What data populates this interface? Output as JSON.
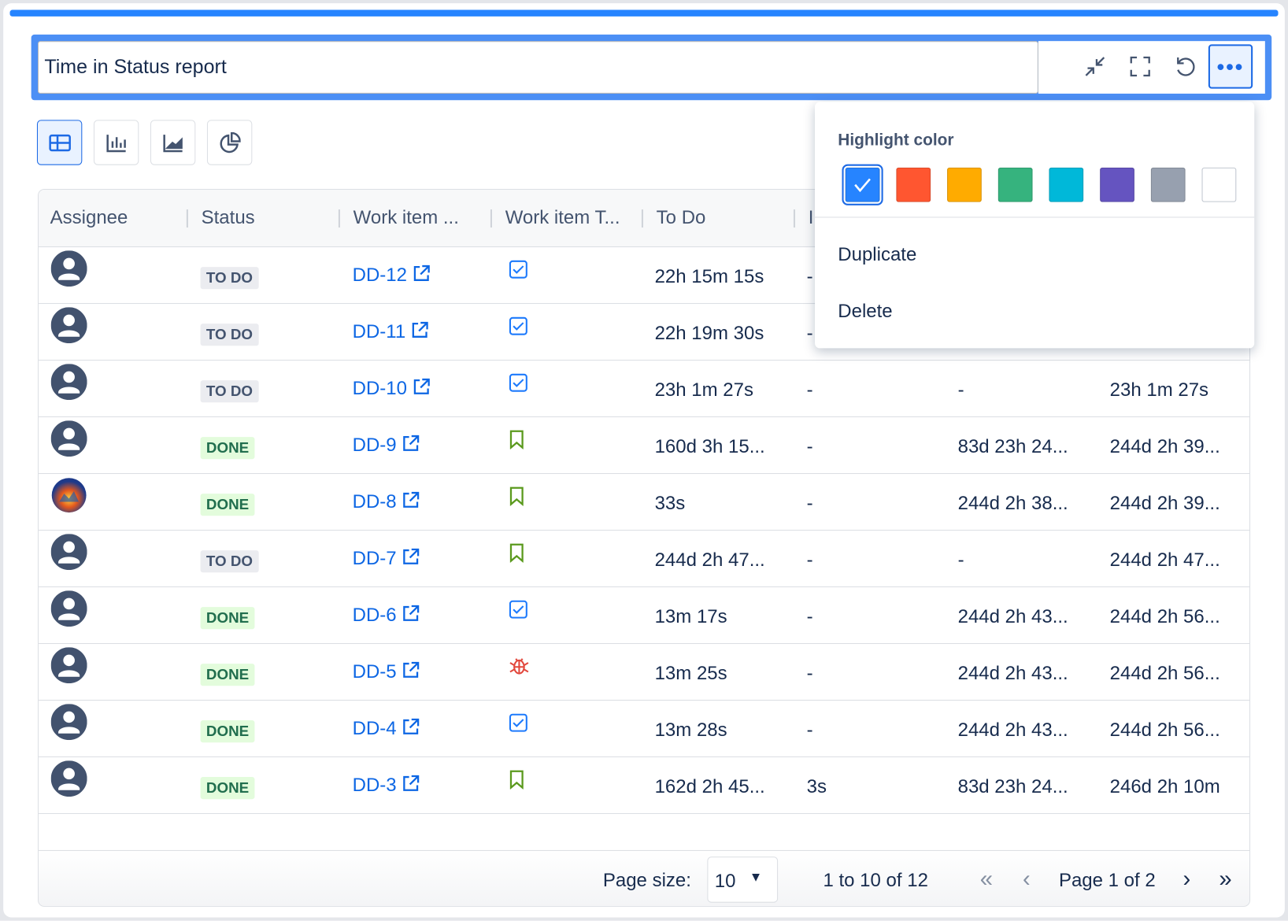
{
  "title": "Time in Status report",
  "toolbar": {
    "icons": [
      "collapse-icon",
      "fullscreen-icon",
      "refresh-icon",
      "more-icon"
    ]
  },
  "views": [
    {
      "name": "table-view",
      "active": true
    },
    {
      "name": "bar-chart-view"
    },
    {
      "name": "area-chart-view"
    },
    {
      "name": "pie-chart-view"
    }
  ],
  "columns": [
    "Assignee",
    "Status",
    "Work item ...",
    "Work item T...",
    "To Do",
    "I",
    "",
    ""
  ],
  "rows": [
    {
      "avatar": "default",
      "status": "TO DO",
      "key": "DD-12",
      "type": "task",
      "c": [
        "22h 15m 15s",
        "-",
        "",
        ""
      ]
    },
    {
      "avatar": "default",
      "status": "TO DO",
      "key": "DD-11",
      "type": "task",
      "c": [
        "22h 19m 30s",
        "-",
        "",
        ""
      ]
    },
    {
      "avatar": "default",
      "status": "TO DO",
      "key": "DD-10",
      "type": "task",
      "c": [
        "23h 1m 27s",
        "-",
        "-",
        "23h 1m 27s"
      ]
    },
    {
      "avatar": "default",
      "status": "DONE",
      "key": "DD-9",
      "type": "story",
      "c": [
        "160d 3h 15...",
        "-",
        "83d 23h 24...",
        "244d 2h 39..."
      ]
    },
    {
      "avatar": "photo",
      "status": "DONE",
      "key": "DD-8",
      "type": "story",
      "c": [
        "33s",
        "-",
        "244d 2h 38...",
        "244d 2h 39..."
      ]
    },
    {
      "avatar": "default",
      "status": "TO DO",
      "key": "DD-7",
      "type": "story",
      "c": [
        "244d 2h 47...",
        "-",
        "-",
        "244d 2h 47..."
      ]
    },
    {
      "avatar": "default",
      "status": "DONE",
      "key": "DD-6",
      "type": "task",
      "c": [
        "13m 17s",
        "-",
        "244d 2h 43...",
        "244d 2h 56..."
      ]
    },
    {
      "avatar": "default",
      "status": "DONE",
      "key": "DD-5",
      "type": "bug",
      "c": [
        "13m 25s",
        "-",
        "244d 2h 43...",
        "244d 2h 56..."
      ]
    },
    {
      "avatar": "default",
      "status": "DONE",
      "key": "DD-4",
      "type": "task",
      "c": [
        "13m 28s",
        "-",
        "244d 2h 43...",
        "244d 2h 56..."
      ]
    },
    {
      "avatar": "default",
      "status": "DONE",
      "key": "DD-3",
      "type": "story",
      "c": [
        "162d 2h 45...",
        "3s",
        "83d 23h 24...",
        "246d 2h 10m"
      ]
    }
  ],
  "footer": {
    "page_size_label": "Page size:",
    "page_size": "10",
    "range": "1 to 10 of 12",
    "page": "Page 1 of 2"
  },
  "menu": {
    "highlight_label": "Highlight color",
    "colors": [
      "#2684ff",
      "#ff5630",
      "#ffab00",
      "#36b37e",
      "#00b8d9",
      "#6554c0",
      "#97a0af",
      "#ffffff"
    ],
    "selected": 0,
    "items": [
      "Duplicate",
      "Delete"
    ]
  }
}
